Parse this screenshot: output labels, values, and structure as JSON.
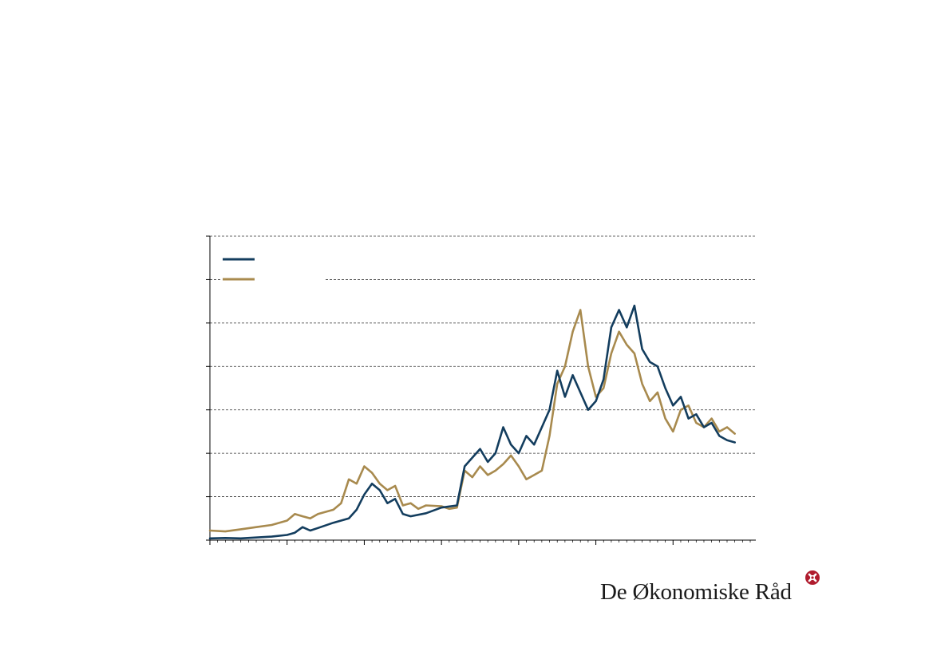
{
  "colors": {
    "series_1": "#133d5e",
    "series_2": "#a88a4e",
    "grid": "#333333",
    "brand_red": "#b01c2e"
  },
  "brand": {
    "name": "De Økonomiske Råd",
    "icon": "rosette-logo-icon"
  },
  "chart_data": {
    "type": "line",
    "title": "",
    "xlabel": "",
    "ylabel": "",
    "ylim": [
      0,
      7
    ],
    "yticks": [
      0,
      1,
      2,
      3,
      4,
      5,
      6,
      7
    ],
    "grid": "horizontal-dashed",
    "legend": "top-left",
    "x_range": [
      0,
      70
    ],
    "x_major_ticks": [
      0,
      10,
      20,
      30,
      40,
      50,
      60
    ],
    "x_minor_tick_step": 1,
    "series": [
      {
        "color": "#133d5e",
        "points": [
          [
            0,
            0.04
          ],
          [
            2,
            0.05
          ],
          [
            4,
            0.04
          ],
          [
            6,
            0.06
          ],
          [
            8,
            0.08
          ],
          [
            10,
            0.12
          ],
          [
            11,
            0.17
          ],
          [
            12,
            0.3
          ],
          [
            13,
            0.22
          ],
          [
            14,
            0.28
          ],
          [
            16,
            0.4
          ],
          [
            18,
            0.5
          ],
          [
            19,
            0.7
          ],
          [
            20,
            1.05
          ],
          [
            21,
            1.3
          ],
          [
            22,
            1.15
          ],
          [
            23,
            0.85
          ],
          [
            24,
            0.95
          ],
          [
            25,
            0.6
          ],
          [
            26,
            0.55
          ],
          [
            28,
            0.62
          ],
          [
            30,
            0.75
          ],
          [
            32,
            0.8
          ],
          [
            33,
            1.7
          ],
          [
            34,
            1.9
          ],
          [
            35,
            2.1
          ],
          [
            36,
            1.8
          ],
          [
            37,
            2.0
          ],
          [
            38,
            2.6
          ],
          [
            39,
            2.2
          ],
          [
            40,
            2.0
          ],
          [
            41,
            2.4
          ],
          [
            42,
            2.2
          ],
          [
            43,
            2.6
          ],
          [
            44,
            3.0
          ],
          [
            45,
            3.9
          ],
          [
            46,
            3.3
          ],
          [
            47,
            3.8
          ],
          [
            48,
            3.4
          ],
          [
            49,
            3.0
          ],
          [
            50,
            3.2
          ],
          [
            51,
            3.7
          ],
          [
            52,
            4.9
          ],
          [
            53,
            5.3
          ],
          [
            54,
            4.9
          ],
          [
            55,
            5.4
          ],
          [
            56,
            4.4
          ],
          [
            57,
            4.1
          ],
          [
            58,
            4.0
          ],
          [
            59,
            3.5
          ],
          [
            60,
            3.1
          ],
          [
            61,
            3.3
          ],
          [
            62,
            2.8
          ],
          [
            63,
            2.9
          ],
          [
            64,
            2.6
          ],
          [
            65,
            2.7
          ],
          [
            66,
            2.4
          ],
          [
            67,
            2.3
          ],
          [
            68,
            2.25
          ]
        ]
      },
      {
        "color": "#a88a4e",
        "points": [
          [
            0,
            0.22
          ],
          [
            2,
            0.2
          ],
          [
            4,
            0.25
          ],
          [
            6,
            0.3
          ],
          [
            8,
            0.35
          ],
          [
            10,
            0.45
          ],
          [
            11,
            0.6
          ],
          [
            12,
            0.55
          ],
          [
            13,
            0.5
          ],
          [
            14,
            0.6
          ],
          [
            16,
            0.7
          ],
          [
            17,
            0.85
          ],
          [
            18,
            1.4
          ],
          [
            19,
            1.3
          ],
          [
            20,
            1.7
          ],
          [
            21,
            1.55
          ],
          [
            22,
            1.3
          ],
          [
            23,
            1.15
          ],
          [
            24,
            1.25
          ],
          [
            25,
            0.8
          ],
          [
            26,
            0.85
          ],
          [
            27,
            0.72
          ],
          [
            28,
            0.8
          ],
          [
            30,
            0.78
          ],
          [
            31,
            0.72
          ],
          [
            32,
            0.75
          ],
          [
            33,
            1.6
          ],
          [
            34,
            1.45
          ],
          [
            35,
            1.7
          ],
          [
            36,
            1.5
          ],
          [
            37,
            1.6
          ],
          [
            38,
            1.75
          ],
          [
            39,
            1.95
          ],
          [
            40,
            1.7
          ],
          [
            41,
            1.4
          ],
          [
            42,
            1.5
          ],
          [
            43,
            1.6
          ],
          [
            44,
            2.4
          ],
          [
            45,
            3.6
          ],
          [
            46,
            4.0
          ],
          [
            47,
            4.8
          ],
          [
            48,
            5.3
          ],
          [
            49,
            4.0
          ],
          [
            50,
            3.3
          ],
          [
            51,
            3.5
          ],
          [
            52,
            4.3
          ],
          [
            53,
            4.8
          ],
          [
            54,
            4.5
          ],
          [
            55,
            4.3
          ],
          [
            56,
            3.6
          ],
          [
            57,
            3.2
          ],
          [
            58,
            3.4
          ],
          [
            59,
            2.8
          ],
          [
            60,
            2.5
          ],
          [
            61,
            3.0
          ],
          [
            62,
            3.1
          ],
          [
            63,
            2.7
          ],
          [
            64,
            2.6
          ],
          [
            65,
            2.8
          ],
          [
            66,
            2.5
          ],
          [
            67,
            2.6
          ],
          [
            68,
            2.45
          ]
        ]
      }
    ]
  }
}
